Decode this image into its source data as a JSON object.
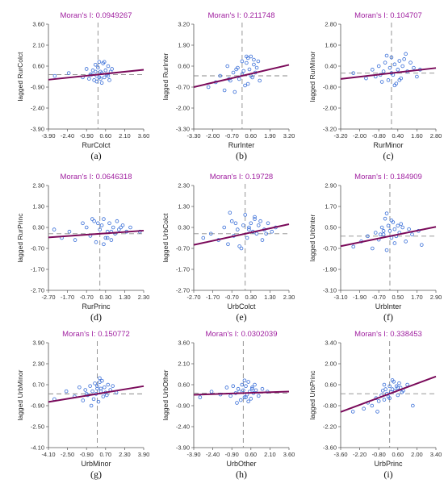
{
  "chart_data": [
    {
      "type": "scatter",
      "label": "(a)",
      "title": "Moran's I: 0.0949267",
      "xlabel": "RurColct",
      "ylabel": "lagged RurColct",
      "xlim": [
        -3.9,
        3.6
      ],
      "ylim": [
        -3.9,
        3.6
      ],
      "xticks": [
        "-3.90",
        "-2.40",
        "-0.90",
        "0.60",
        "2.10",
        "3.60"
      ],
      "yticks": [
        "3.60",
        "2.10",
        "0.60",
        "-0.90",
        "-2.40",
        "-3.90"
      ],
      "x": [
        -3.4,
        -2.3,
        -1.2,
        -0.9,
        -0.7,
        -0.5,
        -0.4,
        -0.3,
        -0.2,
        -0.1,
        0.0,
        0.1,
        0.2,
        0.3,
        0.4,
        0.5,
        0.6,
        0.7,
        0.8,
        0.9,
        1.0,
        1.1,
        0.3,
        -0.2,
        0.5,
        0.1,
        -0.6,
        0.8,
        -0.1,
        0.2
      ],
      "y": [
        -0.1,
        0.1,
        -0.2,
        0.4,
        -0.3,
        0.0,
        0.3,
        -0.4,
        0.2,
        -0.1,
        0.5,
        0.9,
        -0.3,
        0.1,
        0.8,
        -0.2,
        0.3,
        0.0,
        0.6,
        -0.4,
        0.2,
        0.4,
        -0.6,
        0.7,
        0.9,
        -0.2,
        0.0,
        -0.1,
        -0.5,
        0.2
      ],
      "slope": 0.0949
    },
    {
      "type": "scatter",
      "label": "(b)",
      "title": "Moran's I: 0.211748",
      "xlabel": "RurInter",
      "ylabel": "lagged RurInter",
      "xlim": [
        -3.3,
        3.2
      ],
      "ylim": [
        -3.3,
        3.2
      ],
      "xticks": [
        "-3.30",
        "-2.00",
        "-0.70",
        "0.60",
        "1.90",
        "3.20"
      ],
      "yticks": [
        "3.20",
        "1.90",
        "0.60",
        "-0.70",
        "-2.00",
        "-3.30"
      ],
      "x": [
        -2.3,
        -1.8,
        -1.5,
        -1.2,
        -1.0,
        -0.8,
        -0.6,
        -0.5,
        -0.3,
        -0.2,
        0.0,
        0.1,
        0.2,
        0.3,
        0.4,
        0.5,
        0.6,
        0.7,
        0.8,
        0.9,
        1.0,
        1.1,
        1.2,
        0.4,
        0.6,
        -0.4,
        0.3,
        0.8,
        -0.9,
        0.0
      ],
      "y": [
        -0.7,
        -0.4,
        0.0,
        -0.9,
        0.6,
        -0.3,
        0.2,
        -1.0,
        0.5,
        -0.2,
        0.9,
        0.3,
        -0.6,
        0.8,
        1.1,
        0.4,
        1.2,
        -0.1,
        0.7,
        0.2,
        0.5,
        0.9,
        -0.3,
        -0.5,
        0.0,
        0.4,
        1.2,
        1.0,
        -0.2,
        0.1
      ],
      "slope": 0.2117
    },
    {
      "type": "scatter",
      "label": "(c)",
      "title": "Moran's I: 0.104707",
      "xlabel": "RurMinor",
      "ylabel": "lagged RurMinor",
      "xlim": [
        -3.2,
        2.8
      ],
      "ylim": [
        -3.2,
        2.8
      ],
      "xticks": [
        "-3.20",
        "-2.00",
        "-0.80",
        "0.40",
        "1.60",
        "2.80"
      ],
      "yticks": [
        "2.80",
        "1.60",
        "0.40",
        "-0.80",
        "-2.00",
        "-3.20"
      ],
      "x": [
        -2.4,
        -1.6,
        -1.2,
        -1.0,
        -0.8,
        -0.6,
        -0.5,
        -0.4,
        -0.2,
        -0.1,
        0.0,
        0.1,
        0.2,
        0.3,
        0.4,
        0.5,
        0.6,
        0.8,
        1.0,
        1.2,
        1.4,
        1.6,
        1.8,
        -0.3,
        0.2,
        0.7,
        -0.7,
        0.9,
        0.0,
        0.5
      ],
      "y": [
        0.0,
        -0.3,
        0.2,
        -0.2,
        0.4,
        -0.5,
        0.1,
        0.6,
        -0.4,
        0.3,
        0.9,
        -0.1,
        0.5,
        -0.6,
        0.2,
        0.7,
        -0.3,
        0.8,
        0.1,
        0.6,
        0.3,
        -0.2,
        0.2,
        1.0,
        -0.7,
        0.4,
        -0.1,
        1.1,
        0.0,
        -0.4
      ],
      "slope": 0.1047
    },
    {
      "type": "scatter",
      "label": "(d)",
      "title": "Moran's I: 0.0646318",
      "xlabel": "RurPrinc",
      "ylabel": "lagged RurPrinc",
      "xlim": [
        -2.7,
        2.3
      ],
      "ylim": [
        -2.7,
        2.3
      ],
      "xticks": [
        "-2.70",
        "-1.70",
        "-0.70",
        "0.30",
        "1.30",
        "2.30"
      ],
      "yticks": [
        "2.30",
        "1.30",
        "0.30",
        "-0.70",
        "-1.70",
        "-2.70"
      ],
      "x": [
        -2.4,
        -2.0,
        -1.6,
        -1.3,
        -0.9,
        -0.7,
        -0.5,
        -0.3,
        -0.2,
        0.0,
        0.1,
        0.2,
        0.3,
        0.4,
        0.5,
        0.6,
        0.7,
        0.8,
        0.9,
        1.0,
        1.2,
        1.4,
        1.6,
        2.1,
        -0.4,
        0.2,
        0.6,
        -0.1,
        0.4,
        1.1
      ],
      "y": [
        0.2,
        -0.2,
        0.1,
        -0.3,
        0.5,
        0.3,
        -0.1,
        0.6,
        -0.4,
        0.2,
        0.4,
        0.7,
        -0.2,
        0.1,
        0.5,
        -0.3,
        0.3,
        0.0,
        0.6,
        0.2,
        0.4,
        0.1,
        0.3,
        0.1,
        0.7,
        -0.5,
        0.1,
        0.5,
        -0.2,
        0.3
      ],
      "slope": 0.0646
    },
    {
      "type": "scatter",
      "label": "(e)",
      "title": "Moran's I: 0.19728",
      "xlabel": "UrbColct",
      "ylabel": "lagged UrbColct",
      "xlim": [
        -2.7,
        2.3
      ],
      "ylim": [
        -2.7,
        2.3
      ],
      "xticks": [
        "-2.70",
        "-1.70",
        "-0.70",
        "0.30",
        "1.30",
        "2.30"
      ],
      "yticks": [
        "2.30",
        "1.30",
        "0.30",
        "-0.70",
        "-1.70",
        "-2.70"
      ],
      "x": [
        -2.2,
        -1.8,
        -1.4,
        -1.1,
        -0.9,
        -0.7,
        -0.6,
        -0.4,
        -0.3,
        -0.1,
        0.0,
        0.1,
        0.2,
        0.3,
        0.4,
        0.5,
        0.6,
        0.7,
        0.8,
        0.9,
        1.0,
        1.2,
        1.4,
        1.6,
        -0.8,
        -0.2,
        0.5,
        0.2,
        -0.5,
        1.1
      ],
      "y": [
        -0.2,
        0.0,
        -0.3,
        0.3,
        -0.5,
        0.6,
        -0.1,
        0.2,
        -0.6,
        0.4,
        0.9,
        -0.2,
        0.3,
        0.5,
        0.1,
        0.8,
        0.0,
        0.4,
        0.6,
        -0.3,
        0.2,
        0.5,
        0.1,
        0.3,
        1.0,
        -0.7,
        0.7,
        0.2,
        0.5,
        0.0
      ],
      "slope": 0.1973
    },
    {
      "type": "scatter",
      "label": "(f)",
      "title": "Moran's I: 0.184909",
      "xlabel": "UrbInter",
      "ylabel": "lagged UrbInter",
      "xlim": [
        -3.1,
        2.9
      ],
      "ylim": [
        -3.1,
        2.9
      ],
      "xticks": [
        "-3.10",
        "-1.90",
        "-0.70",
        "0.50",
        "1.70",
        "2.90"
      ],
      "yticks": [
        "2.90",
        "1.70",
        "0.50",
        "-0.70",
        "-1.90",
        "-3.10"
      ],
      "x": [
        -2.3,
        -1.8,
        -1.4,
        -1.1,
        -0.9,
        -0.7,
        -0.5,
        -0.4,
        -0.3,
        -0.2,
        -0.1,
        0.0,
        0.1,
        0.2,
        0.3,
        0.4,
        0.5,
        0.6,
        0.8,
        1.0,
        1.2,
        1.4,
        1.8,
        2.0,
        -0.2,
        0.1,
        -0.4,
        0.3,
        0.7,
        -0.6
      ],
      "y": [
        -0.6,
        -0.3,
        0.0,
        -0.7,
        0.2,
        -0.2,
        0.5,
        0.1,
        1.0,
        1.3,
        0.6,
        0.3,
        -0.1,
        0.8,
        0.4,
        0.0,
        0.6,
        0.2,
        0.5,
        -0.3,
        0.4,
        0.1,
        0.3,
        -0.5,
        -0.8,
        0.9,
        0.3,
        -0.4,
        0.7,
        0.1
      ],
      "slope": 0.1849
    },
    {
      "type": "scatter",
      "label": "(g)",
      "title": "Moran's I: 0.150772",
      "xlabel": "UrbMinor",
      "ylabel": "lagged UrbMinor",
      "xlim": [
        -4.1,
        3.9
      ],
      "ylim": [
        -4.1,
        3.9
      ],
      "xticks": [
        "-4.10",
        "-2.50",
        "-0.90",
        "0.70",
        "2.30",
        "3.90"
      ],
      "yticks": [
        "3.90",
        "2.30",
        "0.70",
        "-0.90",
        "-2.50",
        "-4.10"
      ],
      "x": [
        -3.6,
        -2.6,
        -1.9,
        -1.5,
        -1.2,
        -1.0,
        -0.8,
        -0.6,
        -0.4,
        -0.3,
        -0.2,
        -0.1,
        0.0,
        0.1,
        0.2,
        0.3,
        0.4,
        0.5,
        0.6,
        0.7,
        0.9,
        1.1,
        1.3,
        1.6,
        -0.5,
        0.2,
        0.8,
        -0.9,
        0.3,
        0.0
      ],
      "y": [
        -0.4,
        0.2,
        -0.2,
        0.5,
        -0.5,
        0.3,
        -0.1,
        0.6,
        0.2,
        -0.4,
        0.8,
        0.0,
        0.4,
        -0.6,
        0.9,
        0.2,
        1.0,
        -0.2,
        0.5,
        0.1,
        0.7,
        0.3,
        0.6,
        0.1,
        -0.9,
        1.2,
        -0.1,
        0.0,
        0.4,
        0.6
      ],
      "slope": 0.1508
    },
    {
      "type": "scatter",
      "label": "(h)",
      "title": "Moran's I: 0.0302039",
      "xlabel": "UrbOther",
      "ylabel": "lagged UrbOther",
      "xlim": [
        -3.9,
        3.6
      ],
      "ylim": [
        -3.9,
        3.6
      ],
      "xticks": [
        "-3.90",
        "-2.40",
        "-0.90",
        "0.60",
        "2.10",
        "3.60"
      ],
      "yticks": [
        "3.60",
        "2.10",
        "0.60",
        "-0.90",
        "-2.40",
        "-3.90"
      ],
      "x": [
        -3.4,
        -2.5,
        -1.8,
        -1.3,
        -1.0,
        -0.8,
        -0.6,
        -0.4,
        -0.2,
        -0.1,
        0.0,
        0.1,
        0.2,
        0.3,
        0.4,
        0.5,
        0.6,
        0.7,
        0.8,
        0.9,
        1.0,
        1.2,
        1.5,
        1.9,
        -0.5,
        0.1,
        0.4,
        -0.3,
        0.7,
        0.2
      ],
      "y": [
        -0.3,
        0.1,
        -0.1,
        0.4,
        -0.2,
        0.5,
        0.0,
        0.3,
        -0.5,
        0.6,
        0.2,
        -0.3,
        0.5,
        -0.1,
        0.8,
        0.1,
        -0.4,
        0.3,
        0.0,
        0.6,
        0.2,
        -0.2,
        0.3,
        0.1,
        -0.7,
        0.9,
        -0.6,
        0.1,
        0.4,
        -0.3
      ],
      "slope": 0.0302
    },
    {
      "type": "scatter",
      "label": "(i)",
      "title": "Moran's I: 0.338453",
      "xlabel": "UrbPrinc",
      "ylabel": "lagged UrbPrinc",
      "xlim": [
        -3.6,
        3.4
      ],
      "ylim": [
        -3.6,
        3.4
      ],
      "xticks": [
        "-3.60",
        "-2.20",
        "-0.80",
        "0.60",
        "2.00",
        "3.40"
      ],
      "yticks": [
        "3.40",
        "2.00",
        "0.60",
        "-0.80",
        "-2.20",
        "-3.60"
      ],
      "x": [
        -2.7,
        -1.9,
        -1.6,
        -1.3,
        -1.0,
        -0.8,
        -0.6,
        -0.5,
        -0.4,
        -0.3,
        -0.2,
        -0.1,
        0.0,
        0.1,
        0.2,
        0.3,
        0.4,
        0.5,
        0.6,
        0.7,
        0.8,
        1.0,
        1.3,
        1.7,
        -0.9,
        -0.4,
        0.2,
        0.6,
        0.0,
        0.9
      ],
      "y": [
        -1.2,
        -1.0,
        -0.6,
        -0.8,
        -0.3,
        -0.5,
        -0.1,
        0.2,
        -0.4,
        0.3,
        0.0,
        -0.2,
        0.5,
        0.1,
        0.3,
        0.8,
        0.2,
        0.5,
        -0.1,
        0.7,
        0.4,
        0.2,
        0.6,
        -0.8,
        -1.2,
        0.6,
        0.9,
        0.4,
        -0.3,
        0.1
      ],
      "slope": 0.3385
    }
  ],
  "colors": {
    "title": "#a020a0",
    "points": "#3a6fd8",
    "fit_line": "#7a0a5a",
    "ref_line": "#8a8a8a"
  }
}
